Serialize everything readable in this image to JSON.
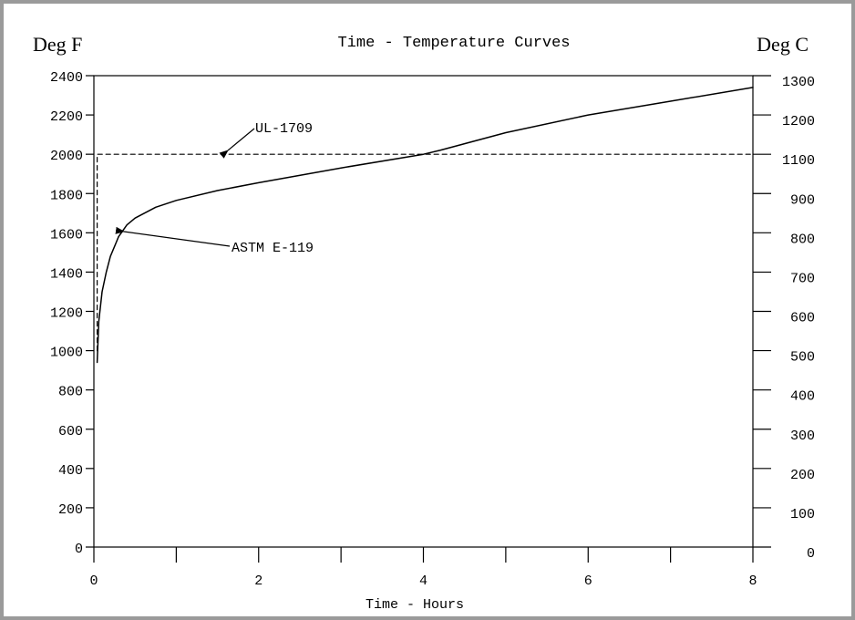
{
  "chart_data": {
    "type": "line",
    "title": "Time - Temperature Curves",
    "y_left_label": "Deg F",
    "y_right_label": "Deg C",
    "xlabel": "Time - Hours",
    "xlim": [
      0,
      8
    ],
    "ylim_left": [
      0,
      2400
    ],
    "x_tick_labels": [
      "0",
      "2",
      "4",
      "6",
      "8"
    ],
    "x_minor_ticks": [
      1,
      3,
      5,
      7
    ],
    "y_left_ticks": [
      "0",
      "200",
      "400",
      "600",
      "800",
      "1000",
      "1200",
      "1400",
      "1600",
      "1800",
      "2000",
      "2200",
      "2400"
    ],
    "y_right_ticks": [
      "0",
      "100",
      "200",
      "300",
      "400",
      "500",
      "600",
      "700",
      "800",
      "900",
      "1100",
      "1200",
      "1300"
    ],
    "grid": false,
    "series": [
      {
        "name": "UL-1709",
        "style": "dashed",
        "points": [
          [
            0.04,
            1000
          ],
          [
            0.04,
            2000
          ],
          [
            8,
            2000
          ]
        ]
      },
      {
        "name": "ASTM E-119",
        "style": "solid",
        "points": [
          [
            0.04,
            940
          ],
          [
            0.06,
            1150
          ],
          [
            0.1,
            1300
          ],
          [
            0.15,
            1400
          ],
          [
            0.2,
            1480
          ],
          [
            0.3,
            1580
          ],
          [
            0.4,
            1640
          ],
          [
            0.5,
            1675
          ],
          [
            0.75,
            1730
          ],
          [
            1,
            1765
          ],
          [
            1.5,
            1815
          ],
          [
            2,
            1855
          ],
          [
            3,
            1930
          ],
          [
            4,
            2000
          ],
          [
            4.2,
            2020
          ],
          [
            5,
            2110
          ],
          [
            6,
            2200
          ],
          [
            7,
            2270
          ],
          [
            8,
            2340
          ]
        ]
      }
    ],
    "annotations": [
      {
        "text": "UL-1709"
      },
      {
        "text": "ASTM E-119"
      }
    ]
  }
}
